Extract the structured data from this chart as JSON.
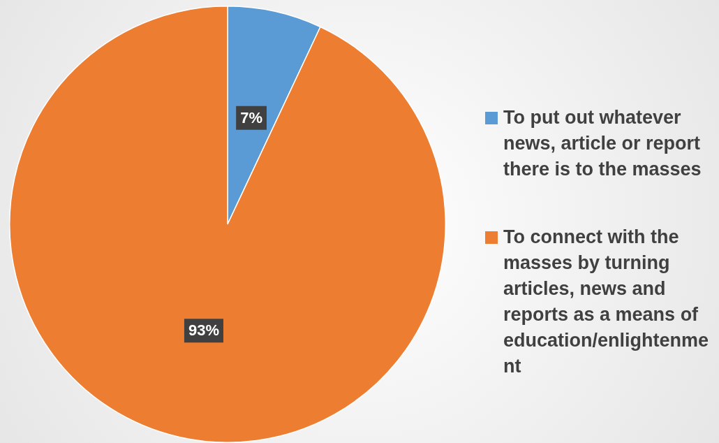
{
  "chart_data": {
    "type": "pie",
    "categories": [
      "To put out whatever news, article or report there is to the masses",
      "To connect with the masses by turning articles, news and reports as a means of education/enlightenment"
    ],
    "values": [
      7,
      93
    ],
    "colors": [
      "#5b9bd5",
      "#ed7d31"
    ],
    "value_labels": [
      "7%",
      "93%"
    ],
    "legend": "right"
  }
}
